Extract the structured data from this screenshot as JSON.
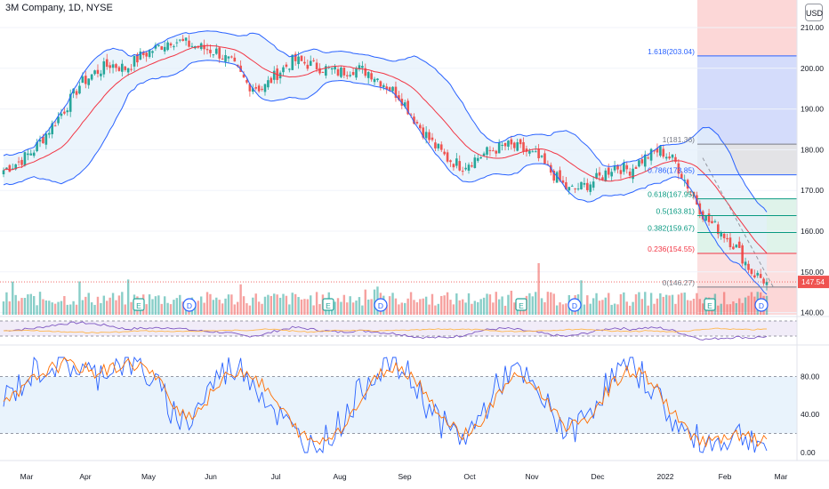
{
  "header": {
    "title": "3M Company, 1D, NYSE",
    "currency": "USD"
  },
  "colors": {
    "up": "#26a69a",
    "down": "#ef5350",
    "bb": "#2962ff",
    "basis": "#f23645",
    "bbfill": "#e3f0fb",
    "stoch_k": "#2962ff",
    "stoch_d": "#ff6d00"
  },
  "chart_data": [
    {
      "type": "candlestick",
      "title": "3M Company, 1D, NYSE",
      "currency": "USD",
      "price_axis": {
        "ticks": [
          140,
          150,
          160,
          170,
          180,
          190,
          200,
          210
        ],
        "labels": [
          "140.00",
          "150.00",
          "160.00",
          "170.00",
          "180.00",
          "190.00",
          "200.00",
          "210.00"
        ],
        "range": [
          139,
          213
        ]
      },
      "time_axis": {
        "labels": [
          "Mar",
          "Apr",
          "May",
          "Jun",
          "Jul",
          "Aug",
          "Sep",
          "Oct",
          "Nov",
          "Dec",
          "2022",
          "Feb",
          "Mar"
        ],
        "year_label": "2022"
      },
      "last_price": "147.54",
      "bollinger_bands": true,
      "closes_weekly": [
        175,
        177,
        180,
        185,
        190,
        196,
        199,
        201,
        200,
        203,
        205,
        207,
        206,
        205,
        204,
        201,
        196,
        195,
        199,
        202,
        201,
        200,
        199,
        200,
        199,
        196,
        193,
        187,
        182,
        178,
        176,
        178,
        180,
        181,
        180,
        178,
        174,
        170,
        171,
        173,
        176,
        175,
        178,
        180,
        177,
        170,
        163,
        160,
        156,
        150,
        147.54
      ],
      "fibonacci": [
        {
          "label": "1.618(203.04)",
          "value": 203.04
        },
        {
          "label": "1(181.36)",
          "value": 181.36
        },
        {
          "label": "0.786(173.85)",
          "value": 173.85
        },
        {
          "label": "0.618(167.95)",
          "value": 167.95
        },
        {
          "label": "0.5(163.81)",
          "value": 163.81
        },
        {
          "label": "0.382(159.67)",
          "value": 159.67
        },
        {
          "label": "0.236(154.55)",
          "value": 154.55
        },
        {
          "label": "0(146.27)",
          "value": 146.27
        }
      ],
      "events": [
        "E",
        "D",
        "E",
        "D",
        "E",
        "D",
        "E",
        "D",
        "E",
        "D"
      ]
    },
    {
      "type": "line",
      "title": "",
      "yaxis": {
        "ticks": [
          0,
          40,
          80
        ],
        "labels": [
          "0.00",
          "40.00",
          "80.00"
        ],
        "range": [
          -8,
          108
        ]
      },
      "bands": [
        20,
        80
      ],
      "series": [
        {
          "values": [
            55,
            70,
            85,
            92,
            95,
            88,
            80,
            92,
            96,
            90,
            70,
            45,
            30,
            55,
            80,
            90,
            85,
            62,
            40,
            20,
            8,
            12,
            30,
            55,
            80,
            95,
            90,
            70,
            45,
            25,
            15,
            30,
            60,
            85,
            80,
            60,
            40,
            20,
            35,
            60,
            82,
            90,
            80,
            55,
            30,
            15,
            10,
            12,
            20,
            15,
            8
          ]
        },
        {
          "values": [
            50,
            62,
            78,
            88,
            93,
            90,
            84,
            88,
            93,
            92,
            78,
            55,
            38,
            48,
            70,
            85,
            86,
            70,
            50,
            28,
            12,
            12,
            25,
            45,
            70,
            88,
            90,
            78,
            55,
            32,
            20,
            26,
            50,
            75,
            80,
            66,
            46,
            26,
            30,
            52,
            74,
            86,
            82,
            62,
            38,
            20,
            12,
            12,
            17,
            15,
            10
          ]
        }
      ]
    }
  ]
}
